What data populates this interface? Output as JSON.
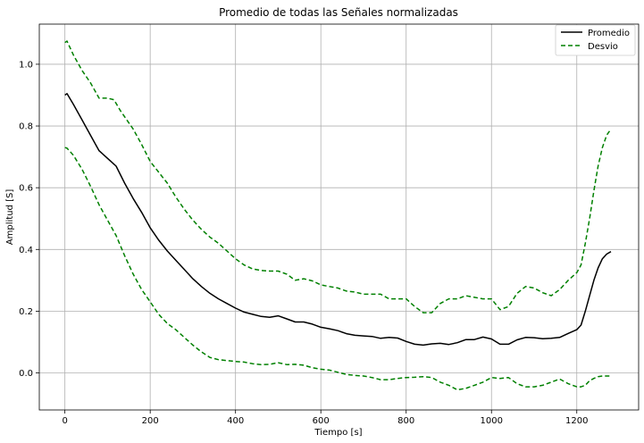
{
  "chart_data": {
    "type": "line",
    "title": "Promedio de todas las Señales normalizadas",
    "xlabel": "Tiempo [s]",
    "ylabel": "Amplitud [S]",
    "xlim": [
      -60,
      1345
    ],
    "ylim": [
      -0.12,
      1.13
    ],
    "xticks": [
      0,
      200,
      400,
      600,
      800,
      1000,
      1200
    ],
    "yticks": [
      0.0,
      0.2,
      0.4,
      0.6,
      0.8,
      1.0
    ],
    "xtick_labels": [
      "0",
      "200",
      "400",
      "600",
      "800",
      "1000",
      "1200"
    ],
    "ytick_labels": [
      "0.0",
      "0.2",
      "0.4",
      "0.6",
      "0.8",
      "1.0"
    ],
    "grid": true,
    "legend_position": "top-right",
    "series": [
      {
        "name": "Promedio",
        "color": "#000000",
        "style": "solid",
        "x": [
          0,
          5,
          20,
          40,
          60,
          80,
          100,
          120,
          140,
          160,
          180,
          200,
          220,
          240,
          260,
          280,
          300,
          320,
          340,
          360,
          380,
          400,
          420,
          440,
          460,
          480,
          500,
          520,
          540,
          560,
          580,
          600,
          620,
          640,
          660,
          680,
          700,
          720,
          740,
          760,
          780,
          800,
          820,
          840,
          860,
          880,
          900,
          920,
          940,
          960,
          980,
          1000,
          1020,
          1040,
          1060,
          1080,
          1100,
          1120,
          1140,
          1160,
          1180,
          1200,
          1210,
          1220,
          1230,
          1240,
          1250,
          1260,
          1270,
          1280
        ],
        "y": [
          0.9,
          0.905,
          0.87,
          0.82,
          0.77,
          0.72,
          0.695,
          0.67,
          0.615,
          0.565,
          0.52,
          0.47,
          0.43,
          0.395,
          0.365,
          0.335,
          0.305,
          0.28,
          0.258,
          0.24,
          0.225,
          0.21,
          0.197,
          0.19,
          0.183,
          0.18,
          0.185,
          0.175,
          0.165,
          0.165,
          0.158,
          0.148,
          0.143,
          0.137,
          0.127,
          0.122,
          0.12,
          0.118,
          0.112,
          0.115,
          0.113,
          0.102,
          0.093,
          0.09,
          0.094,
          0.096,
          0.092,
          0.098,
          0.108,
          0.108,
          0.116,
          0.11,
          0.093,
          0.093,
          0.107,
          0.115,
          0.114,
          0.111,
          0.112,
          0.115,
          0.128,
          0.14,
          0.155,
          0.2,
          0.25,
          0.3,
          0.34,
          0.37,
          0.385,
          0.393
        ]
      },
      {
        "name": "Desvio",
        "color": "#008000",
        "style": "dashed",
        "x": [
          0,
          5,
          20,
          40,
          60,
          80,
          100,
          115,
          130,
          160,
          180,
          200,
          220,
          240,
          260,
          280,
          300,
          320,
          340,
          360,
          380,
          400,
          420,
          440,
          460,
          480,
          500,
          520,
          540,
          560,
          580,
          600,
          620,
          640,
          660,
          680,
          700,
          720,
          740,
          760,
          780,
          800,
          820,
          840,
          860,
          880,
          900,
          920,
          940,
          960,
          980,
          1000,
          1020,
          1040,
          1060,
          1080,
          1100,
          1120,
          1140,
          1160,
          1180,
          1200,
          1210,
          1220,
          1230,
          1240,
          1250,
          1260,
          1270,
          1280
        ],
        "y": [
          1.07,
          1.075,
          1.03,
          0.98,
          0.94,
          0.89,
          0.89,
          0.885,
          0.85,
          0.79,
          0.74,
          0.685,
          0.65,
          0.615,
          0.57,
          0.53,
          0.495,
          0.465,
          0.44,
          0.42,
          0.395,
          0.37,
          0.35,
          0.337,
          0.332,
          0.33,
          0.33,
          0.32,
          0.3,
          0.305,
          0.298,
          0.285,
          0.28,
          0.275,
          0.265,
          0.262,
          0.255,
          0.255,
          0.255,
          0.24,
          0.24,
          0.24,
          0.215,
          0.195,
          0.195,
          0.225,
          0.24,
          0.24,
          0.25,
          0.245,
          0.24,
          0.24,
          0.205,
          0.215,
          0.258,
          0.28,
          0.275,
          0.26,
          0.25,
          0.27,
          0.3,
          0.325,
          0.35,
          0.42,
          0.5,
          0.59,
          0.67,
          0.73,
          0.77,
          0.79
        ]
      },
      {
        "name": "",
        "color": "#008000",
        "style": "dashed",
        "x": [
          0,
          5,
          20,
          40,
          60,
          80,
          100,
          120,
          140,
          160,
          180,
          200,
          220,
          240,
          260,
          280,
          300,
          320,
          340,
          360,
          380,
          400,
          420,
          440,
          460,
          480,
          500,
          520,
          540,
          560,
          580,
          600,
          620,
          640,
          660,
          680,
          700,
          720,
          740,
          760,
          780,
          800,
          820,
          840,
          860,
          880,
          900,
          920,
          940,
          960,
          980,
          1000,
          1020,
          1040,
          1060,
          1080,
          1100,
          1120,
          1140,
          1160,
          1180,
          1200,
          1210,
          1220,
          1230,
          1240,
          1250,
          1260,
          1270,
          1280
        ],
        "y": [
          0.73,
          0.728,
          0.705,
          0.66,
          0.605,
          0.545,
          0.495,
          0.445,
          0.38,
          0.32,
          0.27,
          0.23,
          0.19,
          0.16,
          0.14,
          0.115,
          0.09,
          0.068,
          0.05,
          0.043,
          0.04,
          0.037,
          0.035,
          0.03,
          0.027,
          0.028,
          0.033,
          0.027,
          0.028,
          0.025,
          0.017,
          0.012,
          0.009,
          0.002,
          -0.005,
          -0.008,
          -0.01,
          -0.015,
          -0.022,
          -0.022,
          -0.018,
          -0.015,
          -0.014,
          -0.012,
          -0.015,
          -0.03,
          -0.04,
          -0.055,
          -0.05,
          -0.04,
          -0.03,
          -0.015,
          -0.018,
          -0.015,
          -0.035,
          -0.045,
          -0.045,
          -0.04,
          -0.03,
          -0.02,
          -0.035,
          -0.045,
          -0.045,
          -0.04,
          -0.025,
          -0.018,
          -0.012,
          -0.01,
          -0.01,
          -0.01
        ]
      }
    ]
  }
}
